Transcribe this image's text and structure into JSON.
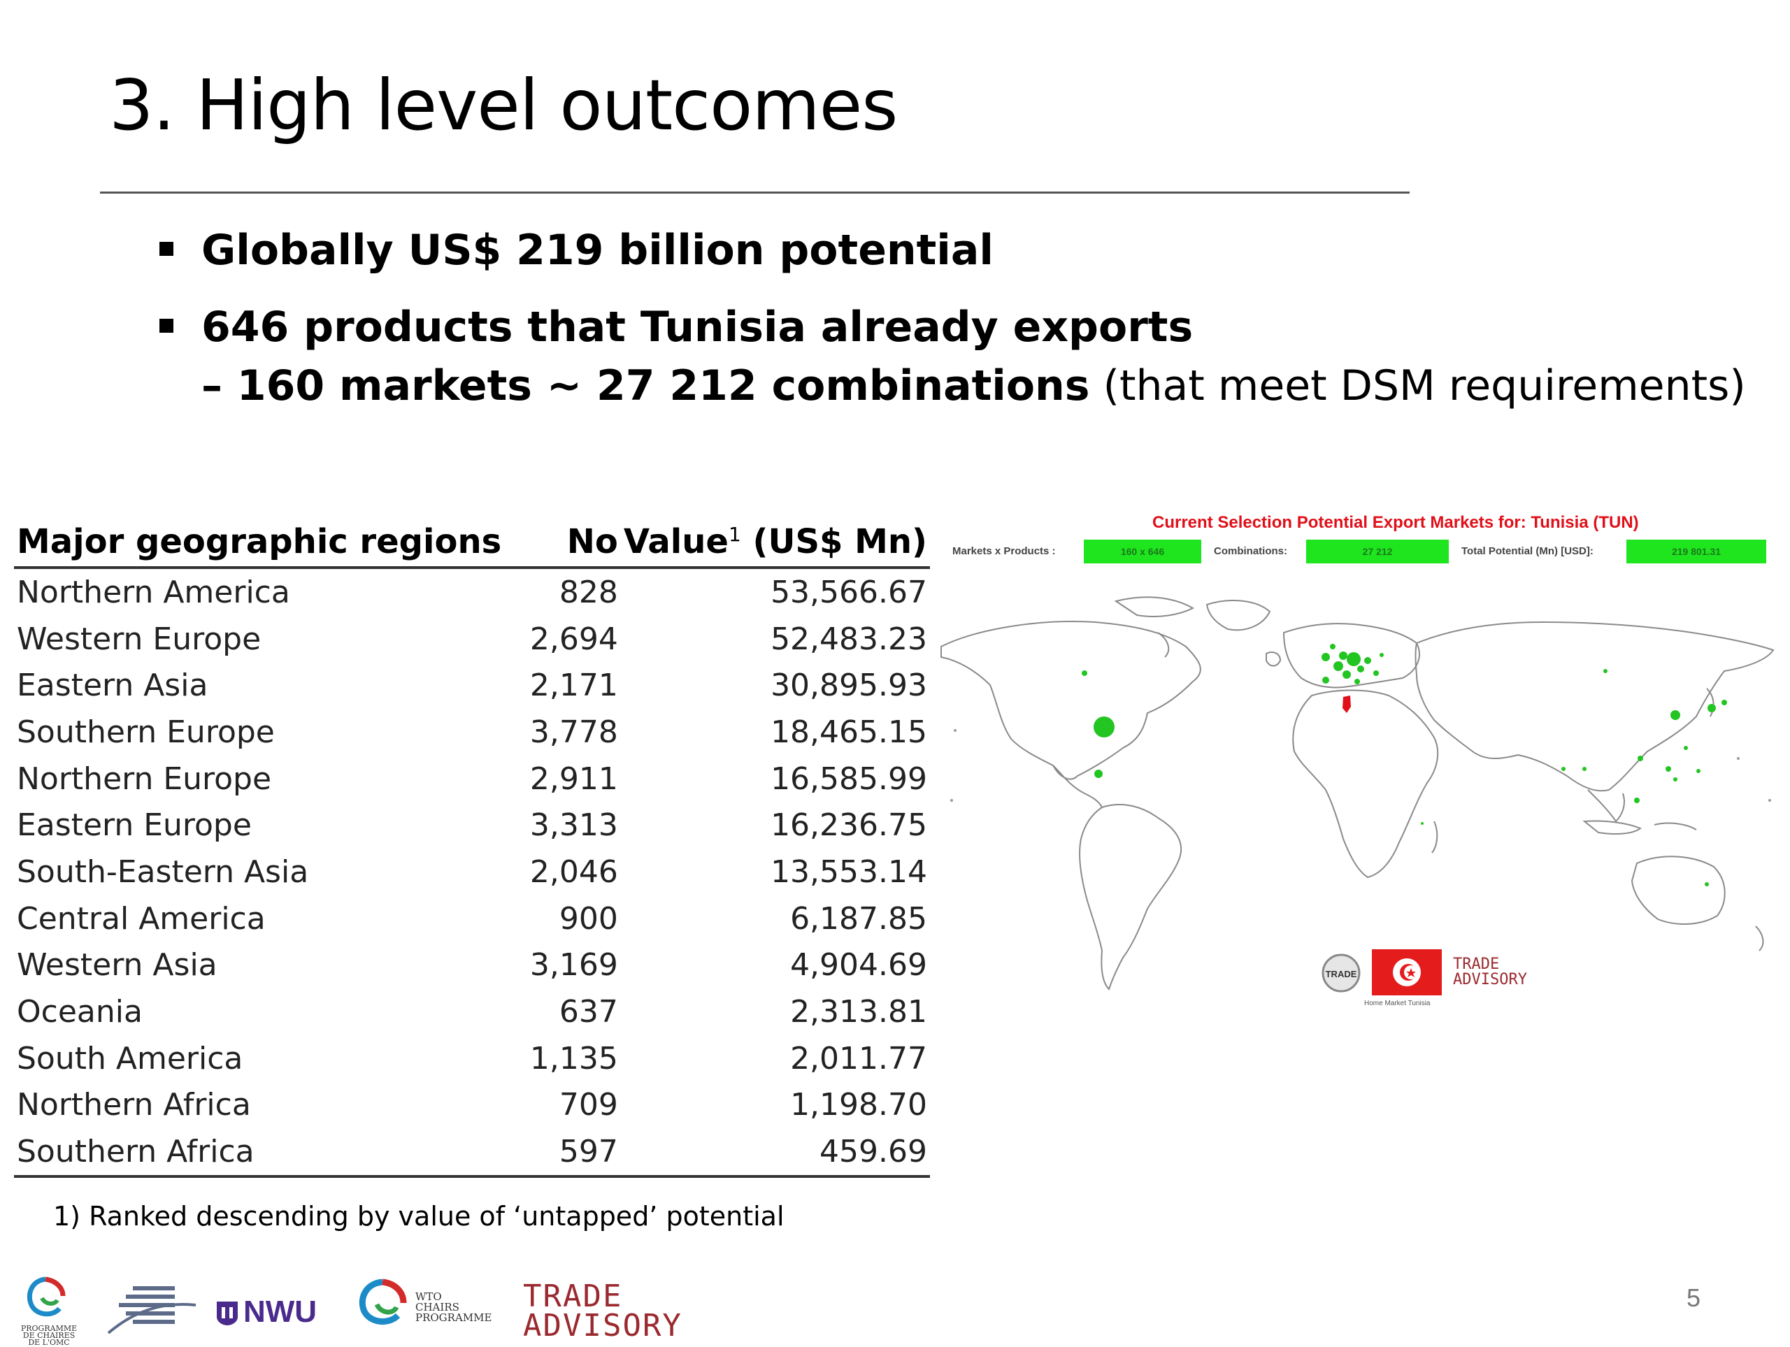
{
  "slide": {
    "title": "3. High level outcomes",
    "bullets": [
      {
        "bold": "Globally US$ 219 billion potential"
      },
      {
        "bold": "646 products that Tunisia already exports",
        "sub_bold": "– 160 markets ~ 27 212 combinations",
        "sub_rest": " (that meet DSM requirements)"
      }
    ],
    "page_number": "5"
  },
  "table": {
    "headers": {
      "region": "Major geographic regions",
      "no": "No",
      "value": "Value",
      "value_sup": "1",
      "value_unit": " (US$ Mn)"
    },
    "rows": [
      {
        "region": "Northern America",
        "no": "828",
        "value": "53,566.67"
      },
      {
        "region": "Western Europe",
        "no": "2,694",
        "value": "52,483.23"
      },
      {
        "region": "Eastern Asia",
        "no": "2,171",
        "value": "30,895.93"
      },
      {
        "region": "Southern Europe",
        "no": "3,778",
        "value": "18,465.15"
      },
      {
        "region": "Northern Europe",
        "no": "2,911",
        "value": "16,585.99"
      },
      {
        "region": "Eastern Europe",
        "no": "3,313",
        "value": "16,236.75"
      },
      {
        "region": "South-Eastern Asia",
        "no": "2,046",
        "value": "13,553.14"
      },
      {
        "region": "Central America",
        "no": "900",
        "value": "6,187.85"
      },
      {
        "region": "Western Asia",
        "no": "3,169",
        "value": "4,904.69"
      },
      {
        "region": "Oceania",
        "no": "637",
        "value": "2,313.81"
      },
      {
        "region": "South America",
        "no": "1,135",
        "value": "2,011.77"
      },
      {
        "region": "Northern Africa",
        "no": "709",
        "value": "1,198.70"
      },
      {
        "region": "Southern Africa",
        "no": "597",
        "value": "459.69"
      }
    ],
    "footnote": "1) Ranked descending by value of ‘untapped’ potential"
  },
  "map_panel": {
    "title": "Current Selection Potential Export Markets for: Tunisia (TUN)",
    "stats": [
      {
        "label": "Markets x Products :",
        "value": "160 x 646"
      },
      {
        "label": "Combinations:",
        "value": "27 212"
      },
      {
        "label": "Total Potential (Mn) [USD]:",
        "value": "219 801.31"
      }
    ],
    "caption": "Home Market Tunisia",
    "accent_color": "#e0101a",
    "marker_color": "#22c522",
    "home_color": "#e0101a"
  },
  "logos": {
    "nwu": "NWU",
    "wto_lines": [
      "WTO",
      "CHAIRS",
      "PROGRAMME"
    ],
    "programme_lines": [
      "PROGRAMME",
      "DE CHAIRES",
      "DE L'OMC"
    ],
    "trade_advisory_lines": [
      "TRADE",
      "ADVISORY"
    ],
    "map_trade_lines": [
      "TRADE",
      "ADVISORY"
    ],
    "map_trade_badge": "TRADE"
  }
}
